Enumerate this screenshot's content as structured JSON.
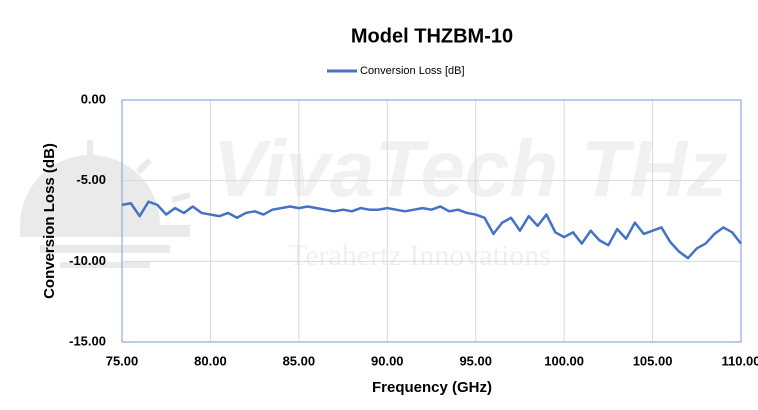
{
  "chart_data": {
    "type": "line",
    "title": "Model THZBM-10",
    "xlabel": "Frequency (GHz)",
    "ylabel": "Conversion Loss (dB)",
    "watermark": "VivaTech THz",
    "watermark_subtitle": "Terahertz Innovations",
    "x": [
      75,
      75.5,
      76,
      76.5,
      77,
      77.5,
      78,
      78.5,
      79,
      79.5,
      80,
      80.5,
      81,
      81.5,
      82,
      82.5,
      83,
      83.5,
      84,
      84.5,
      85,
      85.5,
      86,
      86.5,
      87,
      87.5,
      88,
      88.5,
      89,
      89.5,
      90,
      90.5,
      91,
      91.5,
      92,
      92.5,
      93,
      93.5,
      94,
      94.5,
      95,
      95.5,
      96,
      96.5,
      97,
      97.5,
      98,
      98.5,
      99,
      99.5,
      100,
      100.5,
      101,
      101.5,
      102,
      102.5,
      103,
      103.5,
      104,
      104.5,
      105,
      105.5,
      106,
      106.5,
      107,
      107.5,
      108,
      108.5,
      109,
      109.5,
      110
    ],
    "series": [
      {
        "name": "Conversion Loss [dB]",
        "color": "#4472c4",
        "values": [
          -6.5,
          -6.4,
          -7.2,
          -6.3,
          -6.5,
          -7.1,
          -6.7,
          -7.0,
          -6.6,
          -7.0,
          -7.1,
          -7.2,
          -7.0,
          -7.3,
          -7.0,
          -6.9,
          -7.1,
          -6.8,
          -6.7,
          -6.6,
          -6.7,
          -6.6,
          -6.7,
          -6.8,
          -6.9,
          -6.8,
          -6.9,
          -6.7,
          -6.8,
          -6.8,
          -6.7,
          -6.8,
          -6.9,
          -6.8,
          -6.7,
          -6.8,
          -6.6,
          -6.9,
          -6.8,
          -7.0,
          -7.1,
          -7.3,
          -8.3,
          -7.6,
          -7.3,
          -8.1,
          -7.2,
          -7.8,
          -7.1,
          -8.2,
          -8.5,
          -8.2,
          -8.9,
          -8.1,
          -8.7,
          -9.0,
          -8.0,
          -8.6,
          -7.6,
          -8.3,
          -8.1,
          -7.9,
          -8.8,
          -9.4,
          -9.8,
          -9.2,
          -8.9,
          -8.3,
          -7.9,
          -8.2,
          -8.9
        ]
      }
    ],
    "xlim": [
      75,
      110
    ],
    "ylim": [
      -15,
      0
    ],
    "xticks": [
      {
        "value": 75,
        "label": "75.00"
      },
      {
        "value": 80,
        "label": "80.00"
      },
      {
        "value": 85,
        "label": "85.00"
      },
      {
        "value": 90,
        "label": "90.00"
      },
      {
        "value": 95,
        "label": "95.00"
      },
      {
        "value": 100,
        "label": "100.00"
      },
      {
        "value": 105,
        "label": "105.00"
      },
      {
        "value": 110,
        "label": "110.00"
      }
    ],
    "yticks": [
      {
        "value": -15,
        "label": "-15.00"
      },
      {
        "value": -10,
        "label": "-10.00"
      },
      {
        "value": -5,
        "label": "-5.00"
      },
      {
        "value": 0,
        "label": "0.00"
      }
    ],
    "grid": true,
    "legend": "top"
  }
}
